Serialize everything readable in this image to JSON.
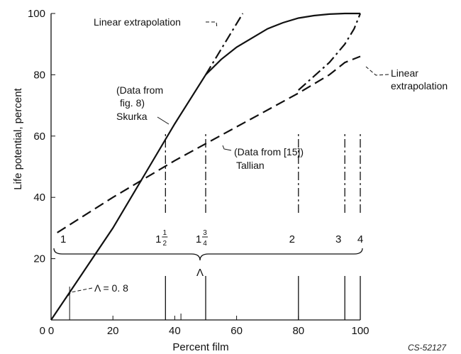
{
  "chart_data": {
    "type": "line",
    "xlabel": "Percent film",
    "ylabel": "Life potential, percent",
    "xlim": [
      0,
      100
    ],
    "ylim": [
      0,
      100
    ],
    "x_ticks": [
      "0",
      "20",
      "40",
      "60",
      "80",
      "100"
    ],
    "y_ticks": [
      "20",
      "40",
      "60",
      "80",
      "100"
    ],
    "series": [
      {
        "name": "Skurka",
        "style": "solid",
        "x": [
          0,
          10,
          20,
          30,
          40,
          50,
          55,
          60,
          65,
          70,
          75,
          80,
          85,
          90,
          95,
          100
        ],
        "y": [
          0,
          15,
          30,
          47,
          64,
          80,
          85,
          89,
          92,
          95,
          97,
          98.5,
          99.3,
          99.8,
          100,
          100
        ]
      },
      {
        "name": "Skurka linear extrapolation",
        "style": "dash-dot",
        "x": [
          50,
          62
        ],
        "y": [
          80,
          100
        ]
      },
      {
        "name": "Tallian",
        "style": "dashed",
        "x": [
          2,
          20,
          40,
          60,
          80,
          90,
          95,
          100
        ],
        "y": [
          28.5,
          40,
          52,
          63,
          74,
          80,
          84,
          86
        ]
      },
      {
        "name": "Tallian linear extrapolation",
        "style": "dash-dot",
        "x": [
          80,
          90,
          95,
          98,
          100
        ],
        "y": [
          75,
          84,
          90,
          95,
          100
        ]
      }
    ],
    "lambda_marks": [
      {
        "label": "1",
        "x": 6
      },
      {
        "label": "1 1/2",
        "x": 37
      },
      {
        "label": "1 3/4",
        "x": 50
      },
      {
        "label": "2",
        "x": 80
      },
      {
        "label": "3",
        "x": 95
      },
      {
        "label": "4",
        "x": 100
      }
    ],
    "lambda_brace_label": "Λ",
    "annotations": {
      "linear_extrapolation_top": "Linear extrapolation",
      "data_fig8_line1": "(Data from",
      "data_fig8_line2": "fig. 8)",
      "skurka": "Skurka",
      "data_15": "(Data from [15])",
      "tallian": "Tallian",
      "linear_extrapolation_right_line1": "Linear",
      "linear_extrapolation_right_line2": "extrapolation",
      "lambda_08": "Λ = 0. 8"
    },
    "figure_id": "CS-52127"
  }
}
